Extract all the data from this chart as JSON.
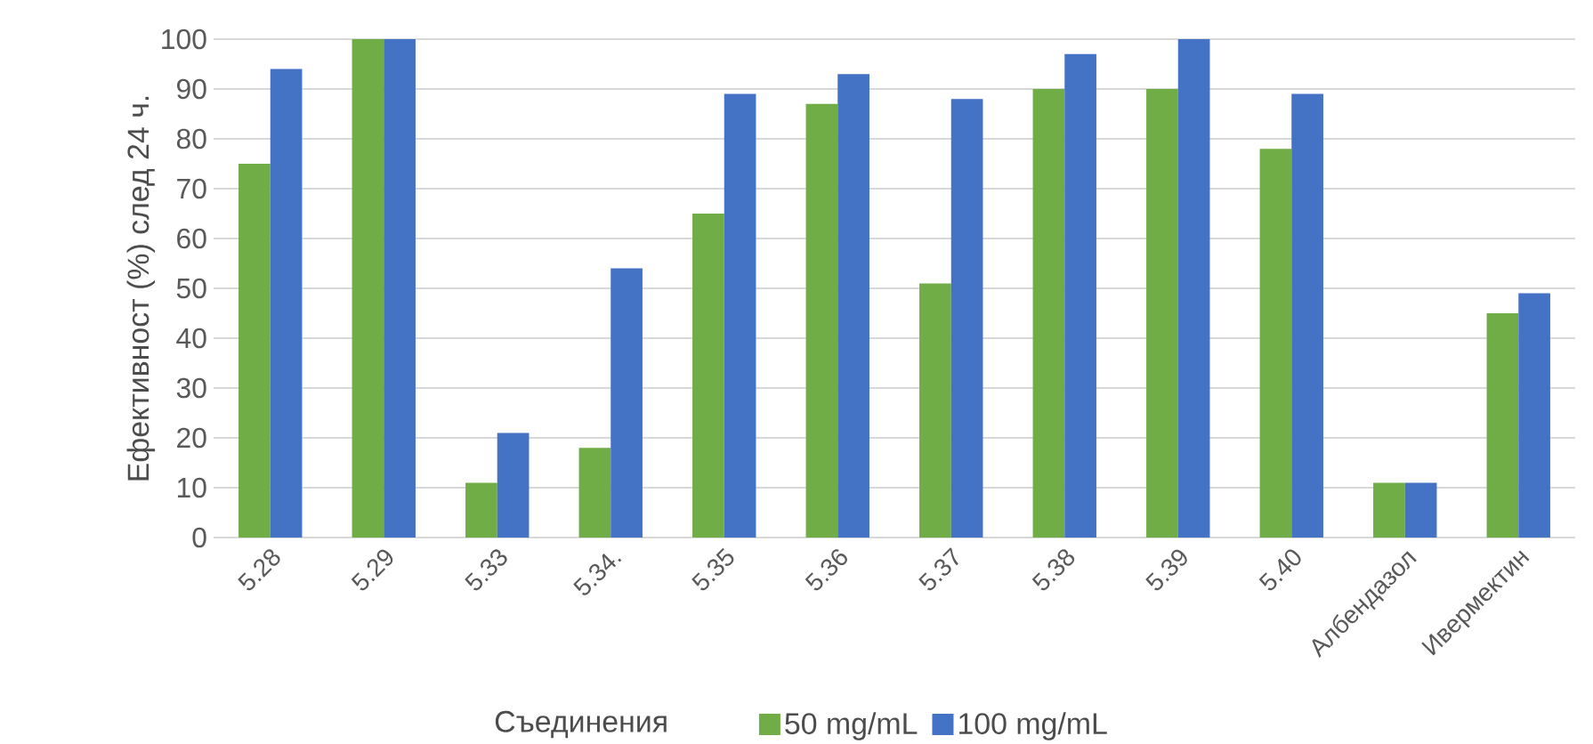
{
  "chart_data": {
    "type": "bar",
    "xlabel": "Съединения",
    "ylabel": "Ефективност (%) след 24 ч.",
    "categories": [
      "5.28",
      "5.29",
      "5.33",
      "5.34.",
      "5.35",
      "5.36",
      "5.37",
      "5.38",
      "5.39",
      "5.40",
      "Албендазол",
      "Ивермектин"
    ],
    "series": [
      {
        "name": "50 mg/mL",
        "color": "#70ad47",
        "values": [
          75,
          100,
          11,
          18,
          65,
          87,
          51,
          90,
          90,
          78,
          11,
          45
        ]
      },
      {
        "name": "100 mg/mL",
        "color": "#4472c4",
        "values": [
          94,
          100,
          21,
          54,
          89,
          93,
          88,
          97,
          100,
          89,
          11,
          49
        ]
      }
    ],
    "ylim": [
      0,
      100
    ],
    "yticks": [
      0,
      10,
      20,
      30,
      40,
      50,
      60,
      70,
      80,
      90,
      100
    ],
    "grid": "y",
    "legend": "bottom"
  }
}
